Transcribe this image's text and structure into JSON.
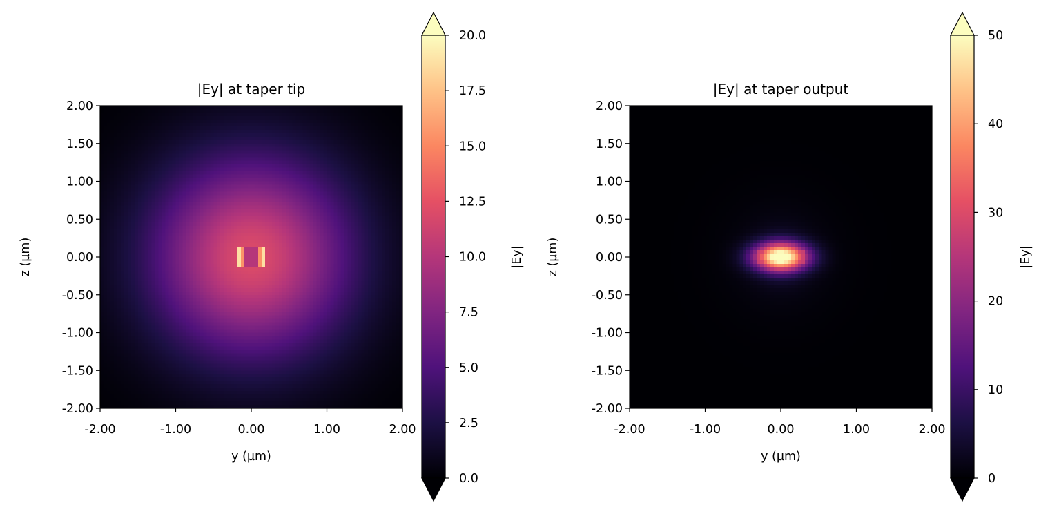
{
  "chart_data": [
    {
      "type": "heatmap",
      "title": "|Ey| at taper tip",
      "xlabel": "y (µm)",
      "ylabel": "z (µm)",
      "xlim": [
        -2.0,
        2.0
      ],
      "ylim": [
        -2.0,
        2.0
      ],
      "x_ticks": [
        "-2.00",
        "-1.00",
        "0.00",
        "1.00",
        "2.00"
      ],
      "y_ticks": [
        "2.00",
        "1.50",
        "1.00",
        "0.50",
        "0.00",
        "-0.50",
        "-1.00",
        "-1.50",
        "-2.00"
      ],
      "colormap": "magma",
      "colorbar": {
        "label": "|Ey|",
        "range": [
          0,
          20
        ],
        "extend": "both",
        "ticks": [
          "20.0",
          "17.5",
          "15.0",
          "12.5",
          "10.0",
          "7.5",
          "5.0",
          "2.5",
          "0.0"
        ]
      },
      "field": {
        "core_center": [
          0.0,
          0.0
        ],
        "core_width_um": 0.3,
        "core_height_um": 0.3,
        "peak_value": 19,
        "core_value": 10,
        "background_at_center": 12,
        "background_decay_um": 1.3
      }
    },
    {
      "type": "heatmap",
      "title": "|Ey| at taper output",
      "xlabel": "y (µm)",
      "ylabel": "z (µm)",
      "xlim": [
        -2.0,
        2.0
      ],
      "ylim": [
        -2.0,
        2.0
      ],
      "x_ticks": [
        "-2.00",
        "-1.00",
        "0.00",
        "1.00",
        "2.00"
      ],
      "y_ticks": [
        "2.00",
        "1.50",
        "1.00",
        "0.50",
        "0.00",
        "-0.50",
        "-1.00",
        "-1.50",
        "-2.00"
      ],
      "colormap": "magma",
      "colorbar": {
        "label": "|Ey|",
        "range": [
          0,
          50
        ],
        "extend": "both",
        "ticks": [
          "50",
          "40",
          "30",
          "20",
          "10",
          "0"
        ]
      },
      "field": {
        "core_center": [
          0.0,
          0.0
        ],
        "core_width_um": 0.6,
        "core_height_um": 0.22,
        "peak_value": 50,
        "core_value": 30,
        "background_at_center": 8,
        "background_decay_um": 0.3
      }
    }
  ]
}
